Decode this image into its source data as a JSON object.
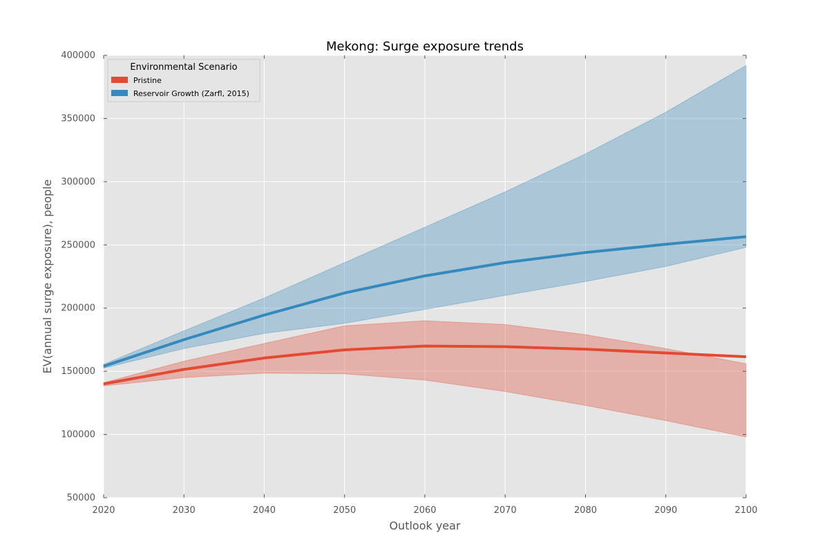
{
  "chart_data": {
    "type": "line",
    "title": "Mekong: Surge exposure trends",
    "xlabel": "Outlook year",
    "ylabel": "EV(annual surge exposure), people",
    "xlim": [
      2020,
      2100
    ],
    "ylim": [
      50000,
      400000
    ],
    "x_ticks": [
      "2020",
      "2030",
      "2040",
      "2050",
      "2060",
      "2070",
      "2080",
      "2090",
      "2100"
    ],
    "y_ticks": [
      "50000",
      "100000",
      "150000",
      "200000",
      "250000",
      "300000",
      "350000",
      "400000"
    ],
    "grid": true,
    "background_color": "#e5e5e5",
    "legend": {
      "title": "Environmental Scenario",
      "position": "top-left"
    },
    "x": [
      2020,
      2030,
      2040,
      2050,
      2060,
      2070,
      2080,
      2090,
      2100
    ],
    "series": [
      {
        "name": "Pristine",
        "color": "#e24a33",
        "values": [
          140000,
          151500,
          160500,
          167000,
          170000,
          169500,
          167500,
          164500,
          161500
        ],
        "upper": [
          141000,
          158000,
          172000,
          186000,
          190000,
          187000,
          179000,
          168000,
          156000
        ],
        "lower": [
          138500,
          145000,
          148500,
          148000,
          143000,
          134000,
          123000,
          111000,
          98000
        ]
      },
      {
        "name": "Reservoir Growth (Zarfl, 2015)",
        "color": "#348abd",
        "values": [
          154000,
          175000,
          194500,
          212000,
          225500,
          236000,
          244000,
          250500,
          256500
        ],
        "upper": [
          155500,
          182000,
          208000,
          236000,
          264000,
          292000,
          322000,
          355000,
          392000
        ],
        "lower": [
          152500,
          168000,
          180000,
          188000,
          199000,
          210000,
          221000,
          233000,
          248000
        ]
      }
    ]
  }
}
